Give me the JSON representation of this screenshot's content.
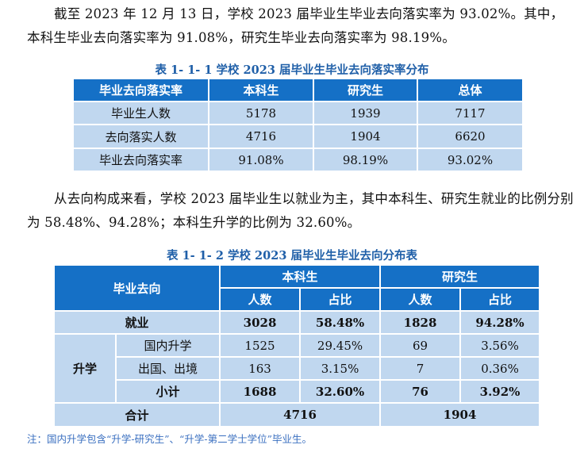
{
  "para1": "截至 2023 年 12 月 13 日，学校 2023 届毕业生毕业去向落实率为 93.02%。其中，本科生毕业去向落实率为 91.08%，研究生毕业去向落实率为 98.19%。",
  "table1": {
    "caption": "表 1- 1- 1  学校 2023 届毕业生毕业去向落实率分布",
    "headers": [
      "毕业去向落实率",
      "本科生",
      "研究生",
      "总体"
    ],
    "rows": [
      [
        "毕业生人数",
        "5178",
        "1939",
        "7117"
      ],
      [
        "去向落实人数",
        "4716",
        "1904",
        "6620"
      ],
      [
        "毕业去向落实率",
        "91.08%",
        "98.19%",
        "93.02%"
      ]
    ]
  },
  "para2": "从去向构成来看，学校 2023 届毕业生以就业为主，其中本科生、研究生就业的比例分别为 58.48%、94.28%；本科生升学的比例为 32.60%。",
  "table2": {
    "caption": "表 1- 1- 2  学校 2023 届毕业生毕业去向分布表",
    "h_dest": "毕业去向",
    "h_ug": "本科生",
    "h_pg": "研究生",
    "h_count": "人数",
    "h_ratio": "占比",
    "employ": {
      "label": "就业",
      "values": [
        "3028",
        "58.48%",
        "1828",
        "94.28%"
      ]
    },
    "further": {
      "label": "升学",
      "rows": [
        {
          "label": "国内升学",
          "values": [
            "1525",
            "29.45%",
            "69",
            "3.56%"
          ]
        },
        {
          "label": "出国、出境",
          "values": [
            "163",
            "3.15%",
            "7",
            "0.36%"
          ]
        }
      ],
      "subtotal": {
        "label": "小计",
        "values": [
          "1688",
          "32.60%",
          "76",
          "3.92%"
        ]
      }
    },
    "total": {
      "label": "合计",
      "values": [
        "4716",
        "1904"
      ]
    }
  },
  "note": "注：国内升学包含“升学-研究生”、“升学-第二学士学位”毕业生。"
}
